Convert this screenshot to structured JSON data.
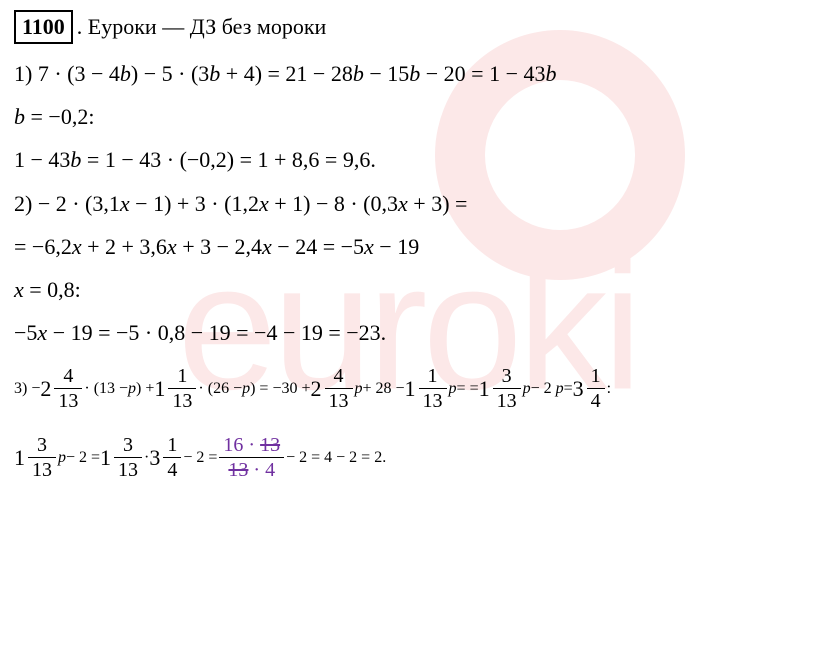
{
  "header": {
    "problem_number": "1100",
    "title_text": ". Еуроки  —  ДЗ без мороки"
  },
  "watermark": {
    "text": "euroki",
    "color": "#fce8e8"
  },
  "lines": {
    "l1": "1) 7 · (3 − 4",
    "l1b": ") − 5 · (3",
    "l1c": " + 4) = 21 − 28",
    "l1d": " − 15",
    "l1e": " − 20 = 1 − 43",
    "l2a": " = −0,2:",
    "l3a": "1 − 43",
    "l3b": " = 1 − 43 · (−0,2) = 1 + 8,6 = 9,6.",
    "l4a": "2) − 2 · (3,1",
    "l4b": " − 1) + 3 · (1,2",
    "l4c": " + 1) − 8 · (0,3",
    "l4d": " + 3) =",
    "l5a": "= −6,2",
    "l5b": " + 2 + 3,6",
    "l5c": " + 3 − 2,4",
    "l5d": " − 24 = −5",
    "l5e": " − 19",
    "l6a": " = 0,8:",
    "l7a": "−5",
    "l7b": " − 19 = −5 · 0,8 − 19 = −4 − 19 = −23.",
    "l8pre": "3) − ",
    "l8a": " · (13 − ",
    "l8b": ") + ",
    "l8c": " · (26 − ",
    "l8d": ") = −30 + ",
    "l8e": " + 28 − ",
    "l8f": " =",
    "l9a": "= ",
    "l9b": " − 2",
    "l10a": " = ",
    "l10b": ":",
    "l11a": " − 2 = ",
    "l11b": " · ",
    "l11c": " − 2 = ",
    "l11d": " − 2 = 4 − 2 = 2."
  },
  "vars": {
    "b": "b",
    "x": "x",
    "p": "p"
  },
  "fractions": {
    "f4_13": {
      "whole": "2",
      "num": "4",
      "den": "13"
    },
    "f1_13": {
      "whole": "1",
      "num": "1",
      "den": "13"
    },
    "f2_4_13": {
      "whole": "2",
      "num": "4",
      "den": "13"
    },
    "f1_1_13": {
      "whole": "1",
      "num": "1",
      "den": "13"
    },
    "f1_3_13": {
      "whole": "1",
      "num": "3",
      "den": "13"
    },
    "f3_1_4": {
      "whole": "3",
      "num": "1",
      "den": "4"
    },
    "final": {
      "num_a": "16 · ",
      "num_strike": "13",
      "den_strike": "13",
      "den_b": " · 4"
    }
  }
}
